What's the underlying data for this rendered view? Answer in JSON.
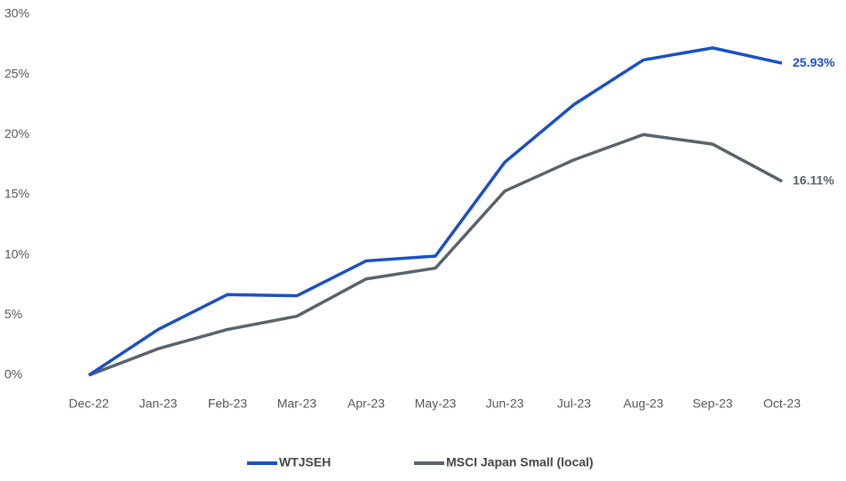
{
  "chart_data": {
    "type": "line",
    "categories": [
      "Dec-22",
      "Jan-23",
      "Feb-23",
      "Mar-23",
      "Apr-23",
      "May-23",
      "Jun-23",
      "Jul-23",
      "Aug-23",
      "Sep-23",
      "Oct-23"
    ],
    "series": [
      {
        "name": "WTJSEH",
        "color": "#1a4fc4",
        "values": [
          0,
          3.8,
          6.7,
          6.6,
          9.5,
          9.9,
          17.7,
          22.5,
          26.2,
          27.2,
          25.93
        ],
        "value_labels": [
          null,
          null,
          null,
          null,
          null,
          null,
          null,
          null,
          null,
          null,
          "25.93%"
        ]
      },
      {
        "name": "MSCI Japan Small (local)",
        "color": "#58636b",
        "values": [
          0,
          2.2,
          3.8,
          4.9,
          8.0,
          8.9,
          15.3,
          17.9,
          20.0,
          19.2,
          16.11
        ],
        "value_labels": [
          null,
          null,
          null,
          null,
          null,
          null,
          null,
          null,
          null,
          null,
          "16.11%"
        ]
      }
    ],
    "ylim": [
      0,
      30
    ],
    "yticks": [
      {
        "value": 0,
        "label": "0%"
      },
      {
        "value": 5,
        "label": "5%"
      },
      {
        "value": 10,
        "label": "10%"
      },
      {
        "value": 15,
        "label": "15%"
      },
      {
        "value": 20,
        "label": "20%"
      },
      {
        "value": 25,
        "label": "25%"
      },
      {
        "value": 30,
        "label": "30%"
      }
    ],
    "grid": false,
    "legend": "bottom"
  }
}
